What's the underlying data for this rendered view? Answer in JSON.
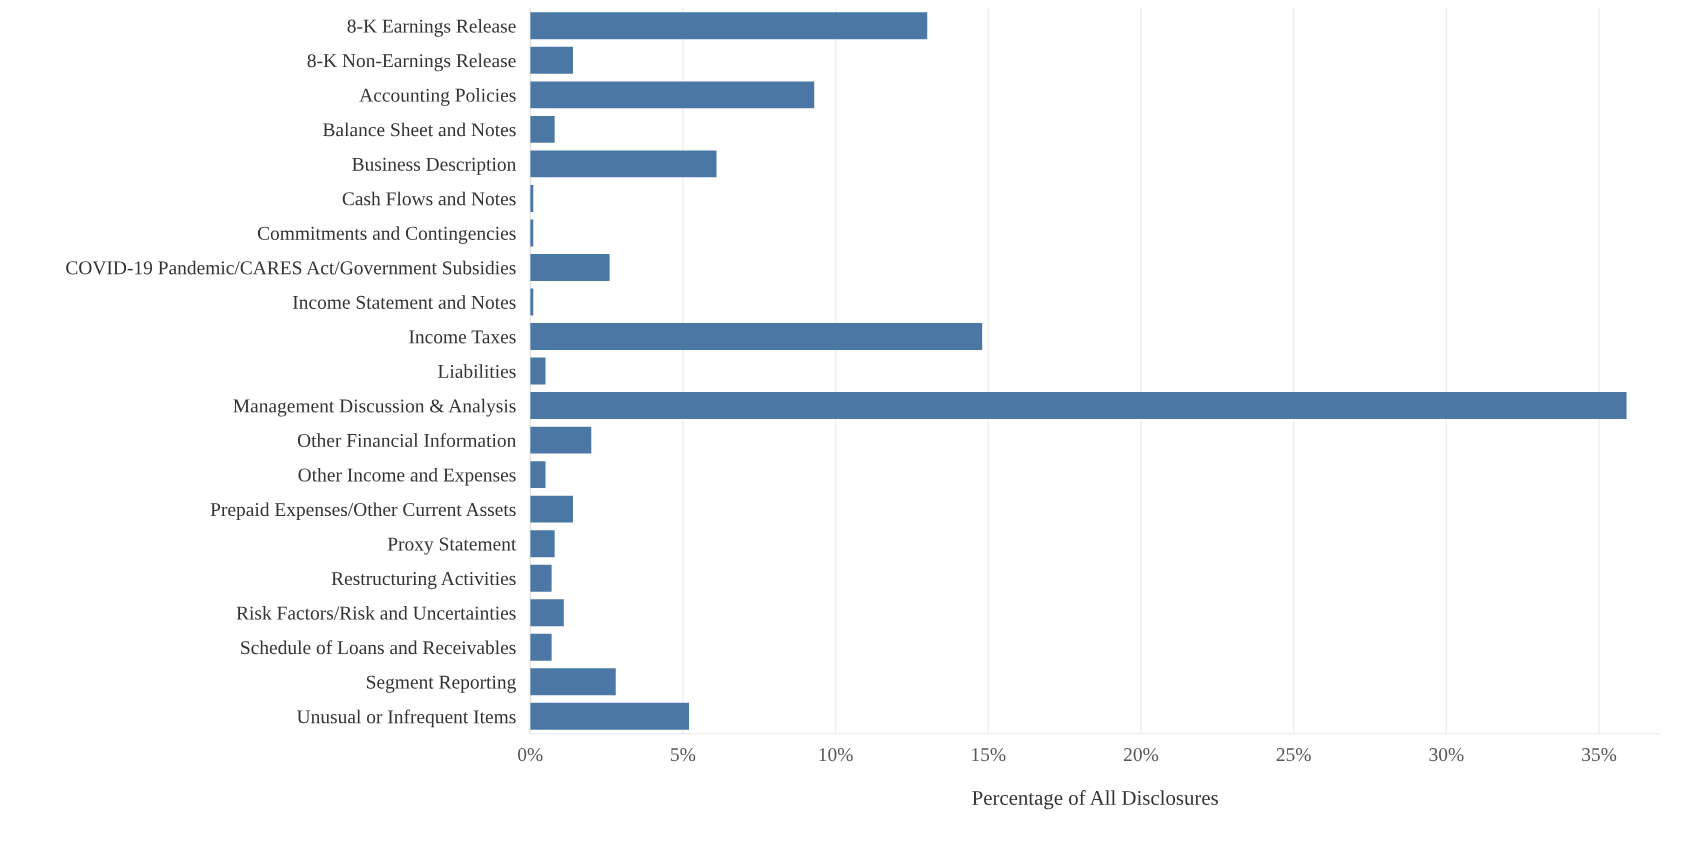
{
  "chart_data": {
    "type": "bar",
    "orientation": "horizontal",
    "xlabel": "Percentage of All Disclosures",
    "categories": [
      "8-K Earnings Release",
      "8-K Non-Earnings Release",
      "Accounting Policies",
      "Balance Sheet and Notes",
      "Business Description",
      "Cash Flows and Notes",
      "Commitments and Contingencies",
      "COVID-19 Pandemic/CARES Act/Government Subsidies",
      "Income Statement and Notes",
      "Income Taxes",
      "Liabilities",
      "Management Discussion & Analysis",
      "Other Financial Information",
      "Other Income and Expenses",
      "Prepaid Expenses/Other Current Assets",
      "Proxy Statement",
      "Restructuring Activities",
      "Risk Factors/Risk and Uncertainties",
      "Schedule of Loans and Receivables",
      "Segment Reporting",
      "Unusual or Infrequent Items"
    ],
    "values": [
      13.0,
      1.4,
      9.3,
      0.8,
      6.1,
      0.1,
      0.1,
      2.6,
      0.1,
      14.8,
      0.5,
      35.9,
      2.0,
      0.5,
      1.4,
      0.8,
      0.7,
      1.1,
      0.7,
      2.8,
      5.2
    ],
    "color": "#4b77a5",
    "xlim": [
      0,
      37
    ],
    "xticks": [
      {
        "value": 0,
        "label": "0%"
      },
      {
        "value": 5,
        "label": "5%"
      },
      {
        "value": 10,
        "label": "10%"
      },
      {
        "value": 15,
        "label": "15%"
      },
      {
        "value": 20,
        "label": "20%"
      },
      {
        "value": 25,
        "label": "25%"
      },
      {
        "value": 30,
        "label": "30%"
      },
      {
        "value": 35,
        "label": "35%"
      }
    ],
    "grid": "x"
  }
}
